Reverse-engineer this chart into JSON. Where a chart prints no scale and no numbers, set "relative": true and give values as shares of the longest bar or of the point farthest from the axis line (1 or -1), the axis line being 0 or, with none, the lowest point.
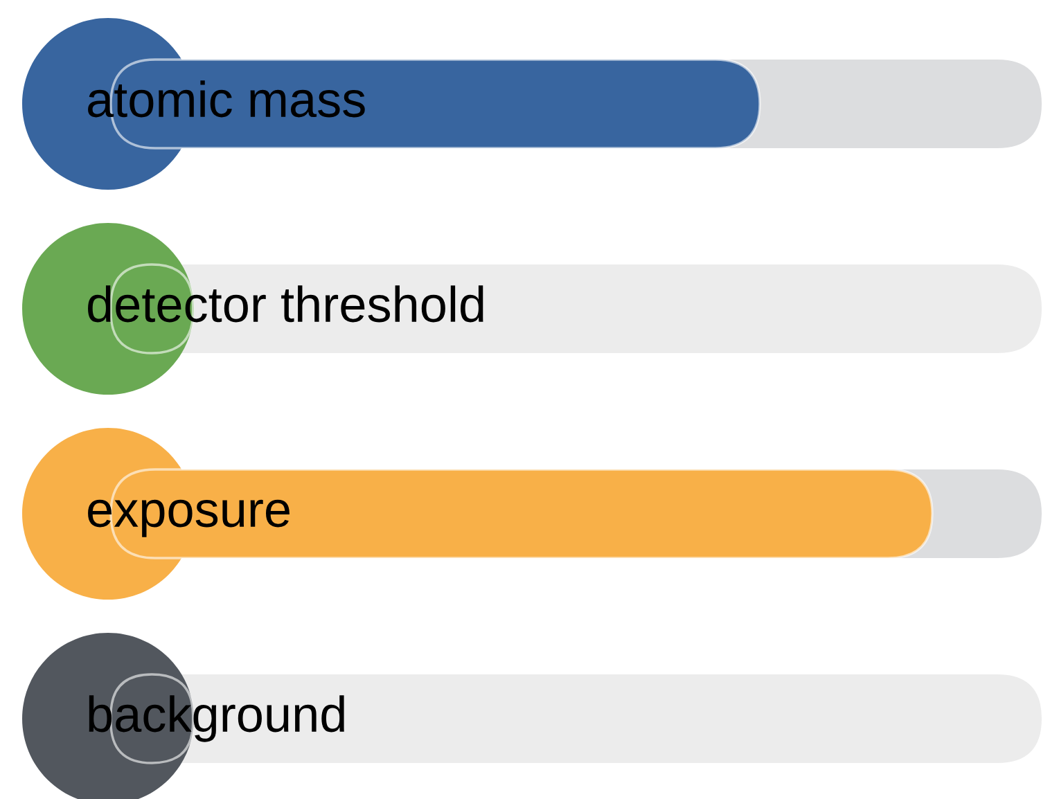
{
  "chart_data": {
    "type": "bar",
    "orientation": "horizontal",
    "relative": true,
    "categories": [
      "atomic mass",
      "detector threshold",
      "exposure",
      "background"
    ],
    "values": [
      0.79,
      0.1,
      1,
      0.1
    ],
    "colors": [
      "#38659f",
      "#6aa953",
      "#f8b048",
      "#52575e"
    ]
  }
}
